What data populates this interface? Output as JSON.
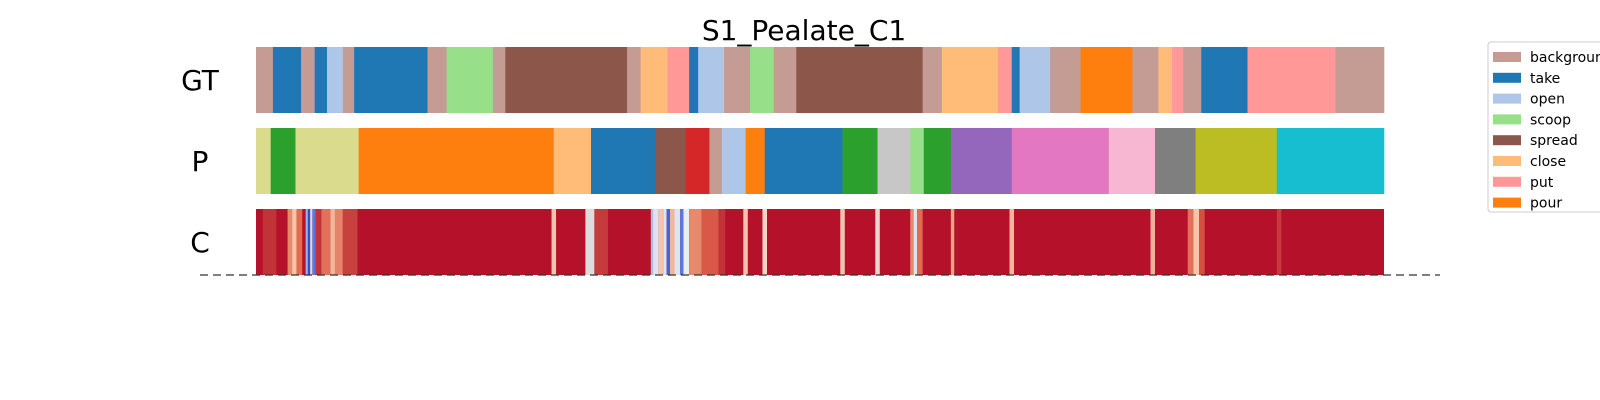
{
  "chart_data": {
    "type": "segmentation-timeline",
    "title": "S1_Pealate_C1",
    "rows": [
      {
        "label": "GT",
        "segments": [
          {
            "class": "background",
            "start": 0.0,
            "end": 0.015
          },
          {
            "class": "take",
            "start": 0.015,
            "end": 0.04
          },
          {
            "class": "background",
            "start": 0.04,
            "end": 0.052
          },
          {
            "class": "take",
            "start": 0.052,
            "end": 0.063
          },
          {
            "class": "open",
            "start": 0.063,
            "end": 0.077
          },
          {
            "class": "background",
            "start": 0.077,
            "end": 0.087
          },
          {
            "class": "take",
            "start": 0.087,
            "end": 0.152
          },
          {
            "class": "background",
            "start": 0.152,
            "end": 0.169
          },
          {
            "class": "scoop",
            "start": 0.169,
            "end": 0.21
          },
          {
            "class": "background",
            "start": 0.21,
            "end": 0.221
          },
          {
            "class": "spread",
            "start": 0.221,
            "end": 0.329
          },
          {
            "class": "background",
            "start": 0.329,
            "end": 0.341
          },
          {
            "class": "close",
            "start": 0.341,
            "end": 0.365
          },
          {
            "class": "put",
            "start": 0.365,
            "end": 0.384
          },
          {
            "class": "take",
            "start": 0.384,
            "end": 0.392
          },
          {
            "class": "open",
            "start": 0.392,
            "end": 0.415
          },
          {
            "class": "background",
            "start": 0.415,
            "end": 0.438
          },
          {
            "class": "scoop",
            "start": 0.438,
            "end": 0.459
          },
          {
            "class": "background",
            "start": 0.459,
            "end": 0.479
          },
          {
            "class": "spread",
            "start": 0.479,
            "end": 0.591
          },
          {
            "class": "background",
            "start": 0.591,
            "end": 0.608
          },
          {
            "class": "close",
            "start": 0.608,
            "end": 0.658
          },
          {
            "class": "put",
            "start": 0.658,
            "end": 0.67
          },
          {
            "class": "take",
            "start": 0.67,
            "end": 0.677
          },
          {
            "class": "open",
            "start": 0.677,
            "end": 0.704
          },
          {
            "class": "background",
            "start": 0.704,
            "end": 0.731
          },
          {
            "class": "pour",
            "start": 0.731,
            "end": 0.777
          },
          {
            "class": "background",
            "start": 0.777,
            "end": 0.8
          },
          {
            "class": "close",
            "start": 0.8,
            "end": 0.812
          },
          {
            "class": "put",
            "start": 0.812,
            "end": 0.822
          },
          {
            "class": "background",
            "start": 0.822,
            "end": 0.838
          },
          {
            "class": "take",
            "start": 0.838,
            "end": 0.879
          },
          {
            "class": "put",
            "start": 0.879,
            "end": 0.957
          },
          {
            "class": "background",
            "start": 0.957,
            "end": 1.0
          }
        ]
      },
      {
        "label": "P",
        "segments": [
          {
            "color": "#dbdb8d",
            "start": 0.0,
            "end": 0.013
          },
          {
            "color": "#2ca02c",
            "start": 0.013,
            "end": 0.035
          },
          {
            "color": "#dbdb8d",
            "start": 0.035,
            "end": 0.091
          },
          {
            "color": "#ff7f0e",
            "start": 0.091,
            "end": 0.264
          },
          {
            "color": "#ffbb78",
            "start": 0.264,
            "end": 0.297
          },
          {
            "color": "#1f77b4",
            "start": 0.297,
            "end": 0.354
          },
          {
            "color": "#8c564b",
            "start": 0.354,
            "end": 0.381
          },
          {
            "color": "#d62728",
            "start": 0.381,
            "end": 0.402
          },
          {
            "color": "#c49c94",
            "start": 0.402,
            "end": 0.413
          },
          {
            "color": "#aec7e8",
            "start": 0.413,
            "end": 0.434
          },
          {
            "color": "#ff7f0e",
            "start": 0.434,
            "end": 0.451
          },
          {
            "color": "#1f77b4",
            "start": 0.451,
            "end": 0.52
          },
          {
            "color": "#2ca02c",
            "start": 0.52,
            "end": 0.551
          },
          {
            "color": "#c7c7c7",
            "start": 0.551,
            "end": 0.58
          },
          {
            "color": "#98df8a",
            "start": 0.58,
            "end": 0.592
          },
          {
            "color": "#2ca02c",
            "start": 0.592,
            "end": 0.616
          },
          {
            "color": "#9467bd",
            "start": 0.616,
            "end": 0.67
          },
          {
            "color": "#e377c2",
            "start": 0.67,
            "end": 0.756
          },
          {
            "color": "#f7b6d2",
            "start": 0.756,
            "end": 0.797
          },
          {
            "color": "#7f7f7f",
            "start": 0.797,
            "end": 0.833
          },
          {
            "color": "#bcbd22",
            "start": 0.833,
            "end": 0.905
          },
          {
            "color": "#17becf",
            "start": 0.905,
            "end": 1.0
          }
        ]
      },
      {
        "label": "C",
        "base_color": "#b5112a",
        "bands": [
          {
            "start": 0.006,
            "end": 0.018,
            "color": "#c23338"
          },
          {
            "start": 0.028,
            "end": 0.032,
            "color": "#e58a6b"
          },
          {
            "start": 0.032,
            "end": 0.036,
            "color": "#f6c4a8"
          },
          {
            "start": 0.036,
            "end": 0.041,
            "color": "#e46a52"
          },
          {
            "start": 0.044,
            "end": 0.046,
            "color": "#93b4f2"
          },
          {
            "start": 0.046,
            "end": 0.048,
            "color": "#3b4cc0"
          },
          {
            "start": 0.048,
            "end": 0.05,
            "color": "#cfdaee"
          },
          {
            "start": 0.05,
            "end": 0.053,
            "color": "#5a78e0"
          },
          {
            "start": 0.053,
            "end": 0.058,
            "color": "#c23338"
          },
          {
            "start": 0.058,
            "end": 0.066,
            "color": "#e2705a"
          },
          {
            "start": 0.066,
            "end": 0.07,
            "color": "#f2b69a"
          },
          {
            "start": 0.07,
            "end": 0.077,
            "color": "#e7836a"
          },
          {
            "start": 0.077,
            "end": 0.09,
            "color": "#c8413f"
          },
          {
            "start": 0.262,
            "end": 0.266,
            "color": "#f2c3ad"
          },
          {
            "start": 0.292,
            "end": 0.3,
            "color": "#dddcdc"
          },
          {
            "start": 0.3,
            "end": 0.312,
            "color": "#c53a3b"
          },
          {
            "start": 0.35,
            "end": 0.352,
            "color": "#aebfe0"
          },
          {
            "start": 0.352,
            "end": 0.357,
            "color": "#dfe3ef"
          },
          {
            "start": 0.357,
            "end": 0.361,
            "color": "#f6c4a8"
          },
          {
            "start": 0.361,
            "end": 0.364,
            "color": "#dfe3ef"
          },
          {
            "start": 0.364,
            "end": 0.367,
            "color": "#4a63d3"
          },
          {
            "start": 0.367,
            "end": 0.371,
            "color": "#f2b69a"
          },
          {
            "start": 0.371,
            "end": 0.376,
            "color": "#dfe3ef"
          },
          {
            "start": 0.376,
            "end": 0.379,
            "color": "#5a78e0"
          },
          {
            "start": 0.379,
            "end": 0.384,
            "color": "#ebeeef"
          },
          {
            "start": 0.384,
            "end": 0.395,
            "color": "#e58a6b"
          },
          {
            "start": 0.395,
            "end": 0.41,
            "color": "#d95847"
          },
          {
            "start": 0.41,
            "end": 0.416,
            "color": "#c23338"
          },
          {
            "start": 0.432,
            "end": 0.436,
            "color": "#f2c3ad"
          },
          {
            "start": 0.449,
            "end": 0.453,
            "color": "#f6d6c6"
          },
          {
            "start": 0.518,
            "end": 0.522,
            "color": "#f2c3ad"
          },
          {
            "start": 0.549,
            "end": 0.553,
            "color": "#e9d7cf"
          },
          {
            "start": 0.58,
            "end": 0.583,
            "color": "#e58a6b"
          },
          {
            "start": 0.583,
            "end": 0.586,
            "color": "#dfe3ef"
          },
          {
            "start": 0.586,
            "end": 0.591,
            "color": "#e26952"
          },
          {
            "start": 0.616,
            "end": 0.619,
            "color": "#e8a487"
          },
          {
            "start": 0.668,
            "end": 0.672,
            "color": "#f2b69a"
          },
          {
            "start": 0.793,
            "end": 0.797,
            "color": "#eeb29a"
          },
          {
            "start": 0.826,
            "end": 0.831,
            "color": "#e2705a"
          },
          {
            "start": 0.831,
            "end": 0.836,
            "color": "#f6c4a8"
          },
          {
            "start": 0.836,
            "end": 0.841,
            "color": "#d6503f"
          },
          {
            "start": 0.905,
            "end": 0.909,
            "color": "#c53a3b"
          }
        ]
      }
    ],
    "legend": {
      "placement": "top-right, outside axes",
      "entries": [
        {
          "label": "backgroun",
          "class": "background",
          "color": "#c49c94"
        },
        {
          "label": "take",
          "class": "take",
          "color": "#1f77b4"
        },
        {
          "label": "open",
          "class": "open",
          "color": "#aec7e8"
        },
        {
          "label": "scoop",
          "class": "scoop",
          "color": "#98df8a"
        },
        {
          "label": "spread",
          "class": "spread",
          "color": "#8c564b"
        },
        {
          "label": "close",
          "class": "close",
          "color": "#ffbb78"
        },
        {
          "label": "put",
          "class": "put",
          "color": "#ff9896"
        },
        {
          "label": "pour",
          "class": "pour",
          "color": "#ff7f0e"
        }
      ]
    },
    "baseline": {
      "style": "dashed",
      "color": "#333333"
    }
  }
}
